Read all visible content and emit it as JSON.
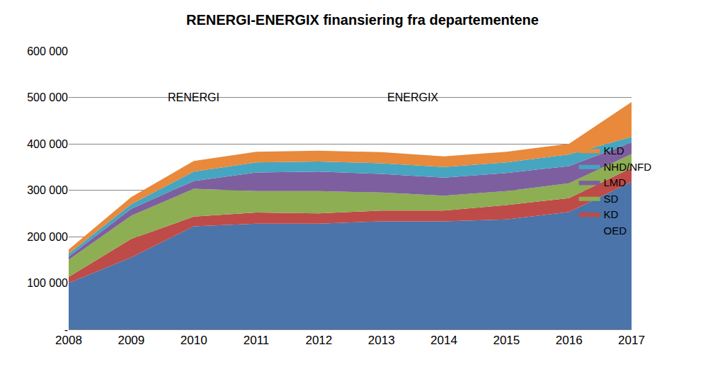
{
  "chart_data": {
    "type": "area",
    "title": "RENERGI-ENERGIX finansiering fra departementene",
    "stacked": true,
    "grid": true,
    "legend": "right",
    "categories": [
      "2008",
      "2009",
      "2010",
      "2011",
      "2012",
      "2013",
      "2014",
      "2015",
      "2016",
      "2017"
    ],
    "series": [
      {
        "name": "OED",
        "color": "#4a74aa",
        "values": [
          100000,
          155000,
          222000,
          228000,
          228000,
          233000,
          233000,
          237000,
          253000,
          318000
        ]
      },
      {
        "name": "KD",
        "color": "#be4b48",
        "values": [
          13000,
          40000,
          21000,
          24000,
          22000,
          23000,
          23000,
          31000,
          30000,
          30000
        ]
      },
      {
        "name": "SD",
        "color": "#8dae52",
        "values": [
          37000,
          50000,
          60000,
          46000,
          48000,
          39000,
          32000,
          30000,
          32000,
          30000
        ]
      },
      {
        "name": "LMD",
        "color": "#7d5f9f",
        "values": [
          7000,
          15000,
          17000,
          40000,
          42000,
          40000,
          39000,
          39000,
          37000,
          25000
        ]
      },
      {
        "name": "NHD/NFD",
        "color": "#46a5c0",
        "values": [
          6000,
          10000,
          20000,
          22000,
          22000,
          23000,
          23000,
          23000,
          25000,
          12000
        ]
      },
      {
        "name": "KLD",
        "color": "#e8893b",
        "values": [
          9000,
          15000,
          23000,
          23000,
          23000,
          24000,
          23000,
          23000,
          23000,
          75000
        ]
      }
    ],
    "ylim": [
      0,
      600000
    ],
    "yticks": [
      {
        "value": 0,
        "label": "-"
      },
      {
        "value": 100000,
        "label": "100 000"
      },
      {
        "value": 200000,
        "label": "200 000"
      },
      {
        "value": 300000,
        "label": "300 000"
      },
      {
        "value": 400000,
        "label": "400 000"
      },
      {
        "value": 500000,
        "label": "500 000"
      },
      {
        "value": 600000,
        "label": "600 000"
      }
    ],
    "annotations": [
      {
        "text": "RENERGI"
      },
      {
        "text": "ENERGIX"
      }
    ]
  }
}
